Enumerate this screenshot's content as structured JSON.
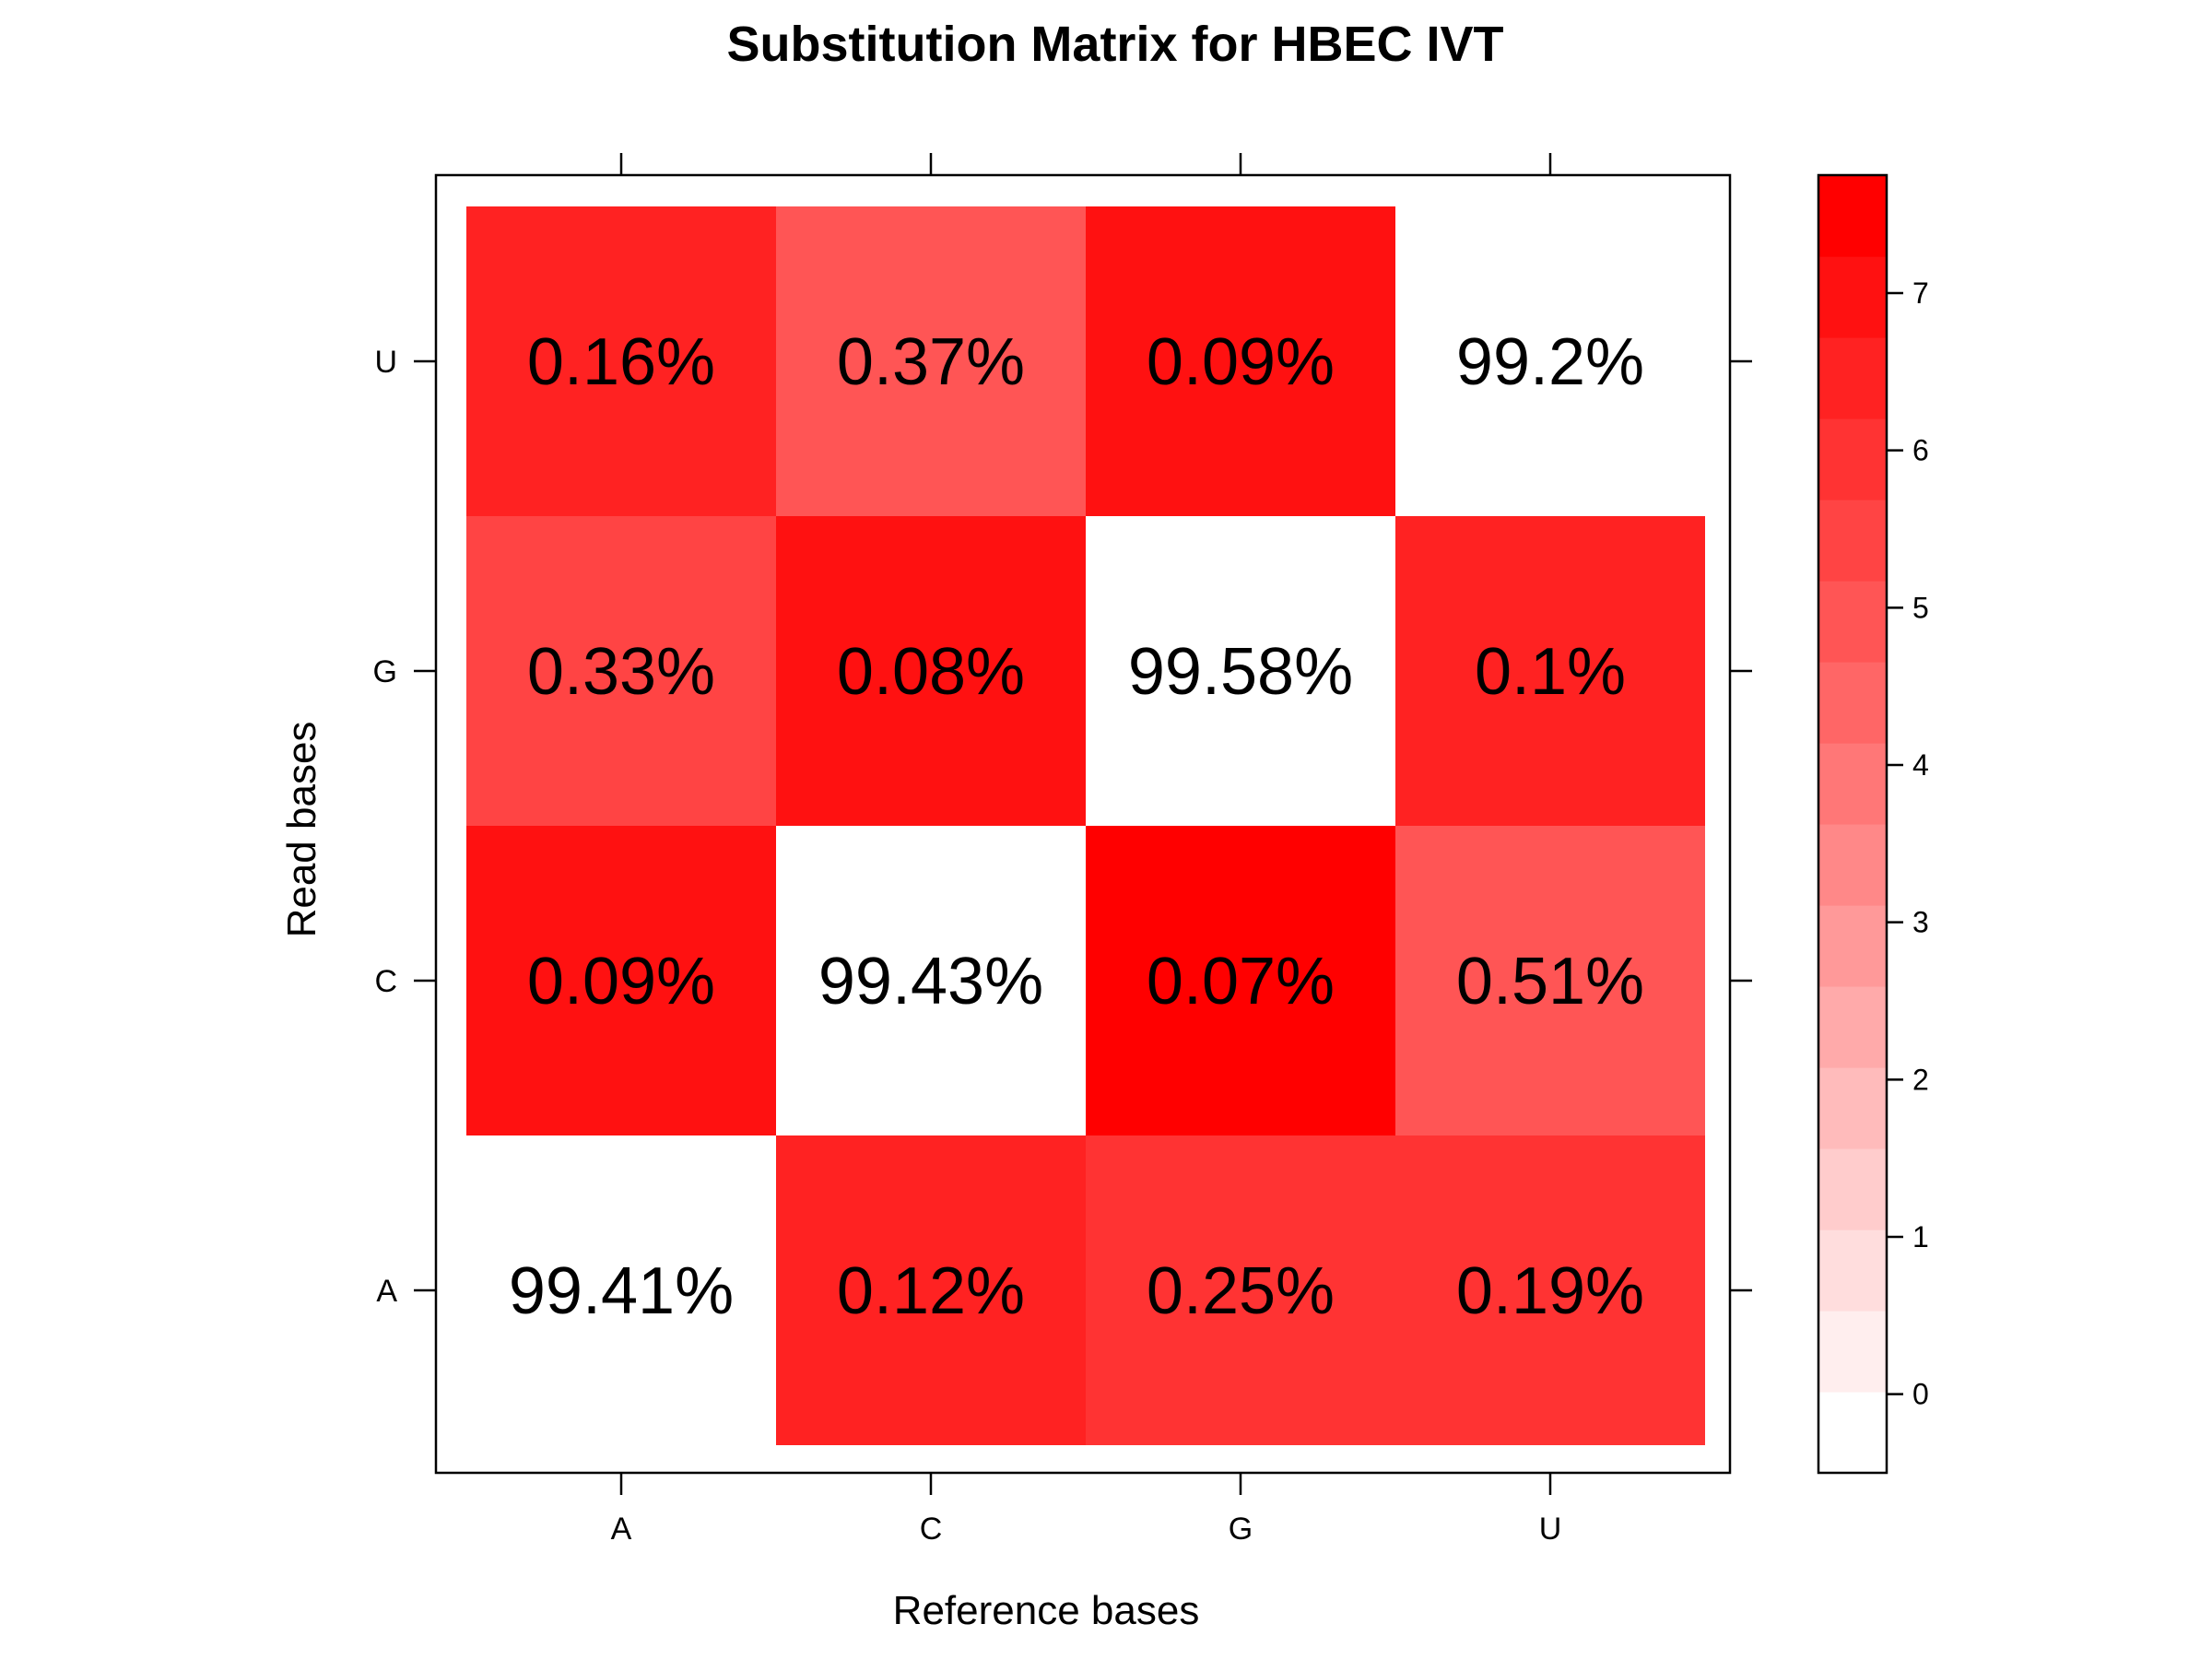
{
  "chart_data": {
    "type": "heatmap",
    "title": "Substitution Matrix for HBEC IVT",
    "xlabel": "Reference bases",
    "ylabel": "Read bases",
    "x_categories": [
      "A",
      "C",
      "G",
      "U"
    ],
    "y_categories": [
      "A",
      "C",
      "G",
      "U"
    ],
    "cells": [
      {
        "x": "A",
        "y": "A",
        "label": "99.41%",
        "level": null
      },
      {
        "x": "C",
        "y": "A",
        "label": "0.12%",
        "level": 6.6
      },
      {
        "x": "G",
        "y": "A",
        "label": "0.25%",
        "level": 5.7
      },
      {
        "x": "U",
        "y": "A",
        "label": "0.19%",
        "level": 6.2
      },
      {
        "x": "A",
        "y": "C",
        "label": "0.09%",
        "level": 6.9
      },
      {
        "x": "C",
        "y": "C",
        "label": "99.43%",
        "level": null
      },
      {
        "x": "G",
        "y": "C",
        "label": "0.07%",
        "level": 7.4
      },
      {
        "x": "U",
        "y": "C",
        "label": "0.51%",
        "level": 5.0
      },
      {
        "x": "A",
        "y": "G",
        "label": "0.33%",
        "level": 5.4
      },
      {
        "x": "C",
        "y": "G",
        "label": "0.08%",
        "level": 6.9
      },
      {
        "x": "G",
        "y": "G",
        "label": "99.58%",
        "level": null
      },
      {
        "x": "U",
        "y": "G",
        "label": "0.1%",
        "level": 6.7
      },
      {
        "x": "A",
        "y": "U",
        "label": "0.16%",
        "level": 6.3
      },
      {
        "x": "C",
        "y": "U",
        "label": "0.37%",
        "level": 5.1
      },
      {
        "x": "G",
        "y": "U",
        "label": "0.09%",
        "level": 6.8
      },
      {
        "x": "U",
        "y": "U",
        "label": "99.2%",
        "level": null
      }
    ],
    "colorbar": {
      "range": [
        -0.5,
        7.75
      ],
      "ticks": [
        0,
        1,
        2,
        3,
        4,
        5,
        6,
        7
      ],
      "tick_labels": [
        "0",
        "1",
        "2",
        "3",
        "4",
        "5",
        "6",
        "7"
      ],
      "bands": 16,
      "color_low": "#ffffff",
      "color_high": "#ff0000"
    },
    "grid": false,
    "legend": "right"
  }
}
